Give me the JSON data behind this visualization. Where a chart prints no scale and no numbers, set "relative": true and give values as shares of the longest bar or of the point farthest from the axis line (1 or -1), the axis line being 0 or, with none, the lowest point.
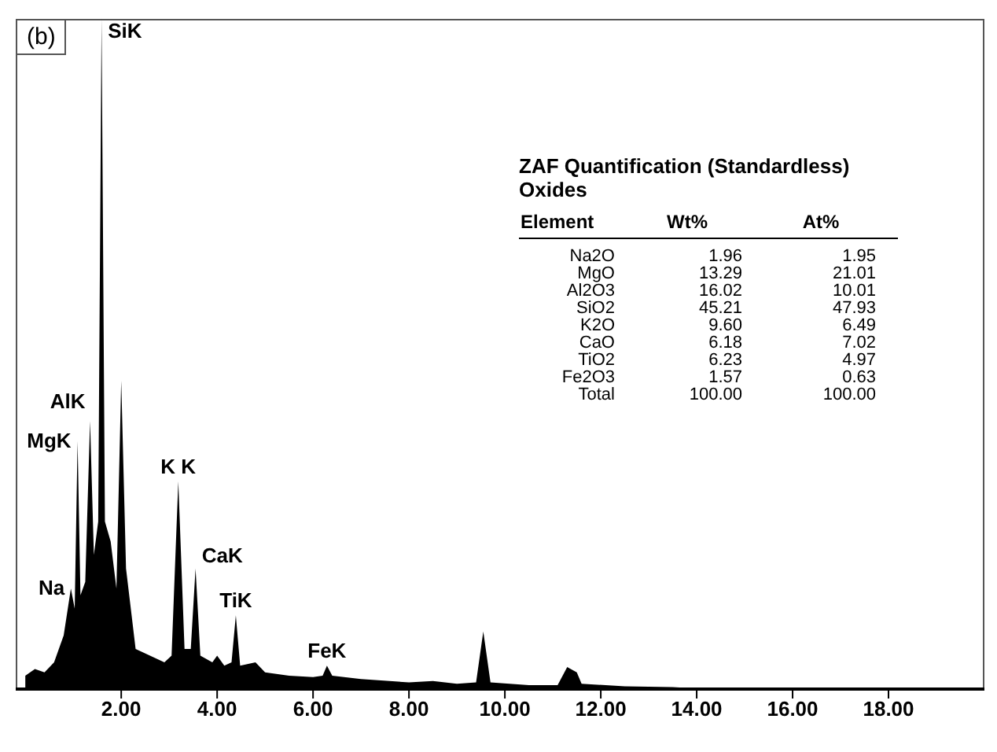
{
  "chart_data": {
    "type": "area",
    "relative": true,
    "title": "ZAF Quantification (Standardless)",
    "subtitle": "Oxides",
    "color": "#000000",
    "x": [
      0,
      0.2,
      0.4,
      0.6,
      0.8,
      0.95,
      1.03,
      1.09,
      1.15,
      1.25,
      1.35,
      1.43,
      1.52,
      1.59,
      1.66,
      1.78,
      1.9,
      2.0,
      2.1,
      2.3,
      2.6,
      2.9,
      3.05,
      3.19,
      3.32,
      3.45,
      3.55,
      3.65,
      3.9,
      4.0,
      4.15,
      4.3,
      4.39,
      4.48,
      4.8,
      5.0,
      5.5,
      6.0,
      6.2,
      6.29,
      6.4,
      7.0,
      8.0,
      8.5,
      9.0,
      9.4,
      9.55,
      9.7,
      10.5,
      11.1,
      11.3,
      11.5,
      11.6,
      12.5,
      13.5,
      14,
      16,
      20
    ],
    "values": [
      0.02,
      0.03,
      0.025,
      0.04,
      0.08,
      0.15,
      0.12,
      0.37,
      0.14,
      0.16,
      0.4,
      0.2,
      0.25,
      1.0,
      0.25,
      0.22,
      0.15,
      0.46,
      0.18,
      0.06,
      0.05,
      0.04,
      0.05,
      0.31,
      0.06,
      0.06,
      0.18,
      0.05,
      0.04,
      0.05,
      0.035,
      0.04,
      0.11,
      0.035,
      0.04,
      0.025,
      0.02,
      0.018,
      0.02,
      0.035,
      0.02,
      0.015,
      0.01,
      0.012,
      0.008,
      0.01,
      0.086,
      0.01,
      0.006,
      0.006,
      0.033,
      0.025,
      0.008,
      0.004,
      0.003,
      0.001,
      0.001,
      0.001
    ],
    "xlim": [
      -0.2,
      20
    ],
    "xticks": [
      {
        "value": 2,
        "label": "2.00"
      },
      {
        "value": 4,
        "label": "4.00"
      },
      {
        "value": 6,
        "label": "6.00"
      },
      {
        "value": 8,
        "label": "8.00"
      },
      {
        "value": 10,
        "label": "10.00"
      },
      {
        "value": 12,
        "label": "12.00"
      },
      {
        "value": 14,
        "label": "14.00"
      },
      {
        "value": 16,
        "label": "16.00"
      },
      {
        "value": 18,
        "label": "18.00"
      }
    ],
    "annotations": [
      "(b)",
      "Element",
      "Wt%",
      "At%",
      "Na2O",
      "1.96",
      "1.95",
      "MgO",
      "13.29",
      "21.01",
      "Al2O3",
      "16.02",
      "10.01",
      "SiO2",
      "45.21",
      "47.93",
      "K2O",
      "9.60",
      "6.49",
      "CaO",
      "6.18",
      "7.02",
      "TiO2",
      "6.23",
      "4.97",
      "Fe2O3",
      "1.57",
      "0.63",
      "Total",
      "100.00",
      "100.00",
      {
        "text": "SiK",
        "x": 1.59,
        "y": 1.0
      },
      {
        "text": "AlK",
        "x": 1.35,
        "y": 0.4
      },
      {
        "text": "MgK",
        "x": 1.09,
        "y": 0.37
      },
      {
        "text": "K K",
        "x": 3.19,
        "y": 0.31
      },
      {
        "text": "CaK",
        "x": 3.55,
        "y": 0.18
      },
      {
        "text": "TiK",
        "x": 4.39,
        "y": 0.11
      },
      {
        "text": "FeK",
        "x": 6.29,
        "y": 0.035
      },
      {
        "text": "Na",
        "x": 0.95,
        "y": 0.15
      }
    ]
  }
}
